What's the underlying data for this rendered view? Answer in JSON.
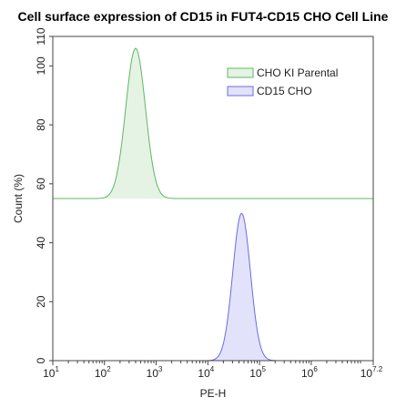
{
  "chart_data": {
    "type": "area",
    "title": "Cell surface expression of CD15 in FUT4-CD15 CHO Cell Line",
    "xlabel": "PE-H",
    "ylabel": "Count (%)",
    "x_scale": "log",
    "xlim": [
      10,
      15848932
    ],
    "xticks": [
      {
        "base": "10",
        "exp": "1",
        "value": 10
      },
      {
        "base": "10",
        "exp": "2",
        "value": 100
      },
      {
        "base": "10",
        "exp": "3",
        "value": 1000
      },
      {
        "base": "10",
        "exp": "4",
        "value": 10000
      },
      {
        "base": "10",
        "exp": "5",
        "value": 100000
      },
      {
        "base": "10",
        "exp": "6",
        "value": 1000000
      },
      {
        "base": "10",
        "exp": "7.2",
        "value": 15848932
      }
    ],
    "ylim": [
      0,
      110
    ],
    "yticks": [
      "0",
      "20",
      "40",
      "60",
      "80",
      "100",
      "110"
    ],
    "yticks_values": [
      0,
      20,
      40,
      60,
      80,
      100,
      110
    ],
    "grid": false,
    "legend_position": "top-right",
    "series": [
      {
        "name": "CHO KI Parental",
        "offset": 55,
        "peak_x": 400,
        "peak_height": 51,
        "sigma_log10": 0.19,
        "fill": "#e4f3e4",
        "stroke": "#5fb85f"
      },
      {
        "name": "CD15 CHO",
        "offset": 0,
        "peak_x": 45000,
        "peak_height": 50,
        "sigma_log10": 0.17,
        "fill": "#e2e2fb",
        "stroke": "#6b6be6"
      }
    ]
  }
}
